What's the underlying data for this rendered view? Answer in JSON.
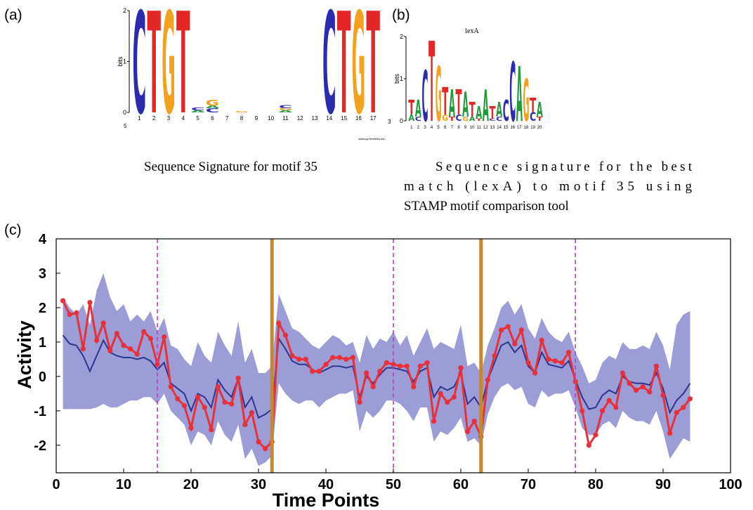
{
  "panel_a": {
    "label": "(a)",
    "caption": "Sequence Signature for motif 35",
    "credit": "weblogo.berkeley.edu",
    "end_labels": [
      "5",
      "3"
    ],
    "y_label": "bits",
    "ylim": [
      0,
      2
    ],
    "yticks": [
      0,
      1,
      2
    ],
    "letter_colors": {
      "A": "#1f9a3a",
      "C": "#2b2bb0",
      "G": "#f2a21e",
      "T": "#e42626"
    },
    "positions": [
      {
        "label": "1",
        "letters": [
          {
            "char": "C",
            "bits": 2
          }
        ]
      },
      {
        "label": "2",
        "letters": [
          {
            "char": "T",
            "bits": 2
          }
        ]
      },
      {
        "label": "3",
        "letters": [
          {
            "char": "G",
            "bits": 2
          }
        ]
      },
      {
        "label": "4",
        "letters": [
          {
            "char": "T",
            "bits": 2
          }
        ]
      },
      {
        "label": "5",
        "letters": [
          {
            "char": "A",
            "bits": 0.04
          },
          {
            "char": "C",
            "bits": 0.05
          }
        ]
      },
      {
        "label": "6",
        "letters": [
          {
            "char": "C",
            "bits": 0.08
          },
          {
            "char": "A",
            "bits": 0.05
          },
          {
            "char": "G",
            "bits": 0.12
          }
        ]
      },
      {
        "label": "7",
        "letters": []
      },
      {
        "label": "8",
        "letters": [
          {
            "char": "G",
            "bits": 0.03
          }
        ]
      },
      {
        "label": "9",
        "letters": []
      },
      {
        "label": "10",
        "letters": []
      },
      {
        "label": "11",
        "letters": [
          {
            "char": "A",
            "bits": 0.04
          },
          {
            "char": "G",
            "bits": 0.04
          },
          {
            "char": "C",
            "bits": 0.06
          }
        ]
      },
      {
        "label": "12",
        "letters": []
      },
      {
        "label": "13",
        "letters": []
      },
      {
        "label": "14",
        "letters": [
          {
            "char": "C",
            "bits": 2
          }
        ]
      },
      {
        "label": "15",
        "letters": [
          {
            "char": "T",
            "bits": 2
          }
        ]
      },
      {
        "label": "16",
        "letters": [
          {
            "char": "G",
            "bits": 2
          }
        ]
      },
      {
        "label": "17",
        "letters": [
          {
            "char": "T",
            "bits": 2
          }
        ]
      }
    ]
  },
  "panel_b": {
    "label": "(b)",
    "title": "lexA",
    "caption": [
      "Sequence signature for the best",
      "match (lexA) to motif 35 using",
      "STAMP motif comparison tool"
    ],
    "y_label": "bits",
    "ylim": [
      0,
      2
    ],
    "yticks": [
      0,
      1,
      2
    ],
    "letter_colors": {
      "A": "#1f9a3a",
      "C": "#2b2bb0",
      "G": "#f2a21e",
      "T": "#e42626"
    },
    "positions": [
      {
        "label": "1",
        "letters": [
          {
            "char": "A",
            "bits": 0.15
          },
          {
            "char": "T",
            "bits": 0.35
          }
        ]
      },
      {
        "label": "2",
        "letters": [
          {
            "char": "C",
            "bits": 0.1
          },
          {
            "char": "A",
            "bits": 0.4
          }
        ]
      },
      {
        "label": "3",
        "letters": [
          {
            "char": "C",
            "bits": 1.2
          }
        ]
      },
      {
        "label": "4",
        "letters": [
          {
            "char": "T",
            "bits": 1.9
          }
        ]
      },
      {
        "label": "5",
        "letters": [
          {
            "char": "G",
            "bits": 1.3
          }
        ]
      },
      {
        "label": "6",
        "letters": [
          {
            "char": "G",
            "bits": 0.15
          },
          {
            "char": "T",
            "bits": 0.65
          }
        ]
      },
      {
        "label": "7",
        "letters": [
          {
            "char": "T",
            "bits": 0.1
          },
          {
            "char": "A",
            "bits": 0.65
          }
        ]
      },
      {
        "label": "8",
        "letters": [
          {
            "char": "C",
            "bits": 0.15
          },
          {
            "char": "T",
            "bits": 0.6
          }
        ]
      },
      {
        "label": "9",
        "letters": [
          {
            "char": "G",
            "bits": 0.1
          },
          {
            "char": "A",
            "bits": 0.6
          }
        ]
      },
      {
        "label": "10",
        "letters": [
          {
            "char": "A",
            "bits": 0.1
          },
          {
            "char": "T",
            "bits": 0.35
          }
        ]
      },
      {
        "label": "11",
        "letters": [
          {
            "char": "T",
            "bits": 0.05
          },
          {
            "char": "A",
            "bits": 0.3
          }
        ]
      },
      {
        "label": "12",
        "letters": [
          {
            "char": "A",
            "bits": 0.75
          }
        ]
      },
      {
        "label": "13",
        "letters": [
          {
            "char": "C",
            "bits": 0.05
          },
          {
            "char": "T",
            "bits": 0.3
          }
        ]
      },
      {
        "label": "14",
        "letters": [
          {
            "char": "C",
            "bits": 0.1
          },
          {
            "char": "A",
            "bits": 0.35
          }
        ]
      },
      {
        "label": "15",
        "letters": [
          {
            "char": "C",
            "bits": 0.5
          }
        ]
      },
      {
        "label": "16",
        "letters": [
          {
            "char": "C",
            "bits": 1.4
          }
        ]
      },
      {
        "label": "17",
        "letters": [
          {
            "char": "A",
            "bits": 1.3
          }
        ]
      },
      {
        "label": "18",
        "letters": [
          {
            "char": "G",
            "bits": 1.0
          }
        ]
      },
      {
        "label": "19",
        "letters": [
          {
            "char": "C",
            "bits": 0.2
          },
          {
            "char": "T",
            "bits": 0.35
          }
        ]
      },
      {
        "label": "20",
        "letters": [
          {
            "char": "T",
            "bits": 0.1
          },
          {
            "char": "A",
            "bits": 0.35
          }
        ]
      }
    ]
  },
  "panel_c_label": "(c)",
  "chart_data": {
    "type": "line",
    "x_label": "Time Points",
    "y_label": "Activity",
    "xlim": [
      0,
      100
    ],
    "ylim": [
      -2.8,
      4
    ],
    "xticks": [
      0,
      10,
      20,
      30,
      40,
      50,
      60,
      70,
      80,
      90,
      100
    ],
    "yticks": [
      -2,
      -1,
      0,
      1,
      2,
      3,
      4
    ],
    "x": [
      1,
      2,
      3,
      4,
      5,
      6,
      7,
      8,
      9,
      10,
      11,
      12,
      13,
      14,
      15,
      16,
      17,
      18,
      19,
      20,
      21,
      22,
      23,
      24,
      25,
      26,
      27,
      28,
      29,
      30,
      31,
      32,
      33,
      34,
      35,
      36,
      37,
      38,
      39,
      40,
      41,
      42,
      43,
      44,
      45,
      46,
      47,
      48,
      49,
      50,
      51,
      52,
      53,
      54,
      55,
      56,
      57,
      58,
      59,
      60,
      61,
      62,
      63,
      64,
      65,
      66,
      67,
      68,
      69,
      70,
      71,
      72,
      73,
      74,
      75,
      76,
      77,
      78,
      79,
      80,
      81,
      82,
      83,
      84,
      85,
      86,
      87,
      88,
      89,
      90,
      91,
      92,
      93,
      94
    ],
    "band": {
      "color": "#9c9cd6",
      "upper": [
        2.3,
        2.0,
        1.8,
        2.1,
        1.5,
        2.5,
        3.0,
        2.3,
        1.9,
        2.1,
        1.6,
        1.8,
        1.6,
        1.9,
        1.3,
        1.7,
        0.9,
        0.8,
        0.5,
        0.3,
        1.0,
        0.6,
        0.4,
        1.3,
        0.9,
        0.6,
        1.6,
        0.4,
        0.8,
        0.1,
        0.1,
        0.3,
        2.4,
        1.9,
        1.4,
        1.3,
        1.1,
        0.9,
        0.8,
        1.0,
        1.2,
        1.1,
        0.9,
        1.0,
        0.4,
        1.2,
        0.8,
        1.1,
        1.0,
        1.3,
        0.9,
        1.2,
        0.6,
        1.0,
        1.4,
        0.8,
        1.0,
        0.9,
        0.8,
        1.5,
        0.3,
        0.4,
        0.1,
        0.9,
        1.4,
        2.0,
        2.2,
        1.8,
        2.1,
        1.4,
        1.1,
        1.7,
        1.3,
        1.1,
        1.0,
        1.3,
        0.7,
        0.3,
        -0.2,
        -0.1,
        0.4,
        0.6,
        0.5,
        1.0,
        0.8,
        0.8,
        0.9,
        0.8,
        1.3,
        0.9,
        0.2,
        1.5,
        1.8,
        1.9
      ],
      "lower": [
        -0.95,
        -0.95,
        -0.95,
        -0.95,
        -0.95,
        -0.9,
        -0.8,
        -0.9,
        -0.9,
        -0.8,
        -0.7,
        -0.7,
        -0.6,
        -0.6,
        -0.8,
        -0.5,
        -1.0,
        -1.2,
        -1.4,
        -2.0,
        -1.6,
        -1.7,
        -2.0,
        -1.3,
        -1.7,
        -1.9,
        -1.4,
        -2.4,
        -2.1,
        -2.6,
        -2.5,
        -2.3,
        -0.2,
        -0.5,
        -0.7,
        -0.8,
        -0.7,
        -0.7,
        -0.9,
        -0.7,
        -0.6,
        -0.5,
        -0.5,
        -0.4,
        -1.6,
        -1.0,
        -1.2,
        -1.0,
        -0.7,
        -0.7,
        -0.8,
        -1.0,
        -1.3,
        -0.9,
        -0.9,
        -1.9,
        -1.6,
        -1.7,
        -1.5,
        -1.2,
        -1.9,
        -1.8,
        -2.0,
        -1.1,
        -0.6,
        -0.3,
        -0.2,
        -0.4,
        -0.3,
        -0.8,
        -0.9,
        -0.4,
        -0.6,
        -0.5,
        -0.5,
        -0.4,
        -0.9,
        -1.5,
        -1.7,
        -1.7,
        -1.4,
        -1.3,
        -1.5,
        -1.0,
        -1.2,
        -1.3,
        -1.3,
        -1.4,
        -1.0,
        -1.6,
        -2.4,
        -2.1,
        -1.8,
        -1.9
      ]
    },
    "series": [
      {
        "color": "#2a3690",
        "markers": false,
        "values": [
          1.2,
          0.95,
          0.9,
          0.6,
          0.15,
          0.6,
          1.05,
          0.7,
          0.6,
          0.55,
          0.55,
          0.5,
          0.55,
          0.45,
          0.2,
          0.4,
          -0.2,
          -0.35,
          -0.5,
          -1.0,
          -0.5,
          -0.6,
          -0.9,
          -0.1,
          -0.4,
          -0.6,
          -0.05,
          -0.9,
          -0.6,
          -1.2,
          -1.1,
          -0.95,
          1.1,
          0.8,
          0.45,
          0.35,
          0.35,
          0.2,
          0.1,
          0.2,
          0.3,
          0.3,
          0.25,
          0.3,
          -0.6,
          0.0,
          -0.2,
          0.05,
          0.25,
          0.25,
          0.2,
          0.15,
          -0.15,
          0.15,
          0.25,
          -0.6,
          -0.3,
          -0.4,
          -0.3,
          0.1,
          -0.8,
          -0.6,
          -0.9,
          -0.1,
          0.4,
          0.9,
          1.0,
          0.7,
          0.9,
          0.3,
          0.1,
          0.7,
          0.35,
          0.3,
          0.25,
          0.45,
          -0.1,
          -0.6,
          -0.95,
          -0.9,
          -0.55,
          -0.4,
          -0.5,
          0.0,
          -0.15,
          -0.2,
          -0.2,
          -0.25,
          0.1,
          -0.35,
          -1.05,
          -0.7,
          -0.5,
          -0.2
        ]
      },
      {
        "color": "#e8303a",
        "markers": true,
        "values": [
          2.2,
          1.8,
          1.85,
          0.8,
          2.15,
          1.05,
          1.55,
          0.75,
          1.25,
          0.9,
          0.8,
          0.65,
          1.3,
          1.1,
          0.35,
          1.15,
          -0.3,
          -0.65,
          -0.85,
          -1.5,
          -0.6,
          -0.9,
          -1.55,
          -0.3,
          -0.75,
          -0.8,
          -0.05,
          -1.4,
          -1.05,
          -1.9,
          -2.1,
          -1.9,
          1.55,
          1.2,
          0.6,
          0.5,
          0.5,
          0.15,
          0.15,
          0.35,
          0.55,
          0.55,
          0.5,
          0.55,
          -0.75,
          0.1,
          -0.3,
          0.15,
          0.4,
          0.35,
          0.3,
          0.3,
          -0.3,
          0.3,
          0.4,
          -1.3,
          -0.5,
          -0.75,
          -0.6,
          0.25,
          -1.6,
          -1.3,
          -1.75,
          -0.1,
          0.6,
          1.35,
          1.45,
          0.95,
          1.35,
          0.4,
          0.1,
          1.05,
          0.5,
          0.45,
          0.4,
          0.7,
          -0.15,
          -1.0,
          -2.0,
          -1.7,
          -1.0,
          -0.7,
          -0.9,
          0.1,
          -0.2,
          -0.4,
          -0.3,
          -0.45,
          0.3,
          -0.55,
          -1.65,
          -1.05,
          -0.9,
          -0.65
        ]
      }
    ],
    "vlines": [
      {
        "color": "#c23ec2",
        "dashed": true,
        "values": [
          15,
          50,
          77
        ]
      },
      {
        "color": "#c8872a",
        "dashed": false,
        "values": [
          32,
          63
        ]
      }
    ]
  }
}
